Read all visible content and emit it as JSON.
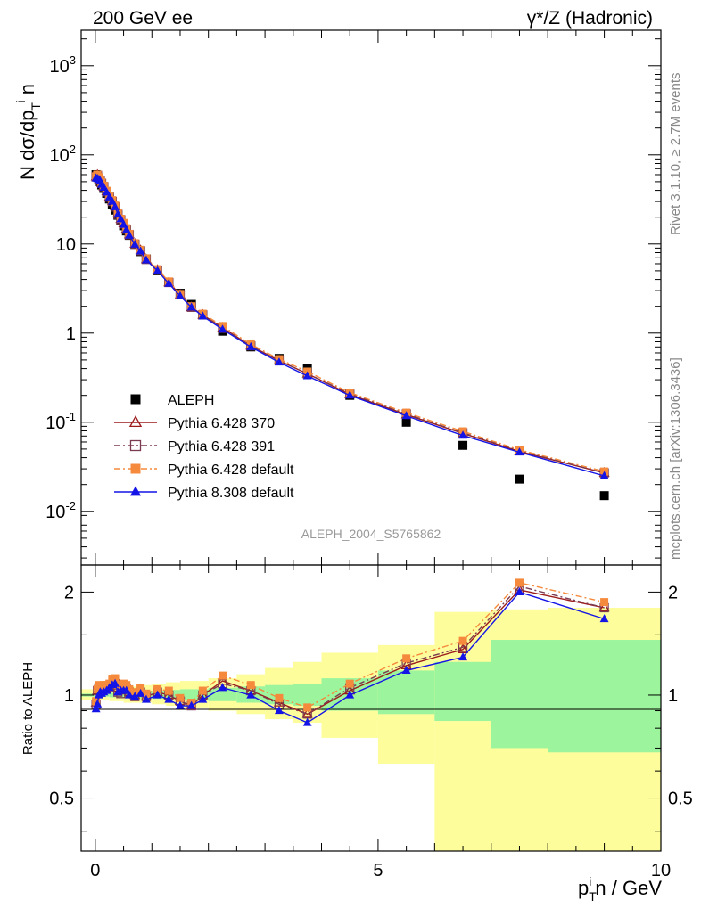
{
  "header": {
    "left": "200 GeV ee",
    "right": "γ*/Z (Hadronic)"
  },
  "side_text": {
    "rivet": "Rivet 3.1.10, ≥ 2.7M events",
    "mcplots": "mcplots.cern.ch [arXiv:1306.3436]"
  },
  "watermark": "ALEPH_2004_S5765862",
  "chart_data": [
    {
      "type": "scatter",
      "panel": "main",
      "yscale": "log",
      "ylabel": "N dσ/dp_T^i n",
      "xlim": [
        -0.25,
        10
      ],
      "ylim": [
        0.0025,
        2500
      ],
      "y_tick_labels": [
        "10^-2",
        "10^-1",
        "1",
        "10",
        "10^2",
        "10^3"
      ],
      "x": [
        0.0125,
        0.0375,
        0.0625,
        0.0875,
        0.1125,
        0.15,
        0.2,
        0.25,
        0.3,
        0.35,
        0.4,
        0.45,
        0.5,
        0.55,
        0.6,
        0.7,
        0.8,
        0.9,
        1.1,
        1.3,
        1.5,
        1.7,
        1.9,
        2.25,
        2.75,
        3.25,
        3.75,
        4.5,
        5.5,
        6.5,
        7.5,
        9.0
      ],
      "series": [
        {
          "name": "ALEPH",
          "marker": "filled-square",
          "color": "#000000",
          "values": [
            60.0,
            57.5,
            52.5,
            50.0,
            46.0,
            42.0,
            37.0,
            32.0,
            28.0,
            24.0,
            21.0,
            18.5,
            16.0,
            14.0,
            12.5,
            10.0,
            8.2,
            6.8,
            5.0,
            3.7,
            2.8,
            2.1,
            1.6,
            1.05,
            0.7,
            0.52,
            0.4,
            0.2,
            0.1,
            0.055,
            0.023,
            0.015
          ]
        },
        {
          "name": "Pythia 6.428 370",
          "marker": "open-triangle",
          "color": "#9b1c1c",
          "line": "solid",
          "values": [
            57.0,
            59.5,
            55.0,
            52.0,
            48.0,
            44.0,
            39.0,
            34.0,
            30.5,
            26.5,
            22.0,
            19.0,
            17.0,
            14.8,
            12.8,
            10.0,
            8.5,
            6.7,
            5.1,
            3.7,
            2.7,
            1.95,
            1.6,
            1.15,
            0.72,
            0.49,
            0.35,
            0.205,
            0.122,
            0.075,
            0.047,
            0.027
          ]
        },
        {
          "name": "Pythia 6.428 391",
          "marker": "open-square",
          "color": "#7a3a50",
          "line": "dash-dot",
          "values": [
            56.5,
            59.0,
            55.0,
            52.0,
            48.0,
            44.0,
            38.5,
            33.5,
            30.0,
            26.0,
            21.5,
            18.7,
            16.8,
            14.6,
            12.7,
            9.9,
            8.4,
            6.7,
            5.1,
            3.7,
            2.7,
            1.95,
            1.6,
            1.13,
            0.72,
            0.49,
            0.35,
            0.21,
            0.124,
            0.076,
            0.048,
            0.027
          ]
        },
        {
          "name": "Pythia 6.428 default",
          "marker": "filled-square",
          "color": "#f58a3c",
          "line": "dash-dot",
          "values": [
            57.5,
            60.0,
            56.0,
            53.0,
            49.0,
            45.0,
            39.5,
            34.5,
            31.0,
            27.0,
            22.5,
            19.2,
            17.2,
            15.0,
            13.0,
            10.2,
            8.6,
            6.9,
            5.2,
            3.8,
            2.75,
            2.0,
            1.65,
            1.2,
            0.75,
            0.51,
            0.37,
            0.215,
            0.128,
            0.079,
            0.049,
            0.028
          ]
        },
        {
          "name": "Pythia 8.308 default",
          "marker": "filled-triangle",
          "color": "#1414e6",
          "line": "solid",
          "values": [
            55.0,
            54.0,
            53.0,
            51.0,
            46.5,
            43.0,
            38.0,
            33.5,
            30.0,
            26.0,
            21.5,
            19.0,
            16.5,
            14.4,
            12.5,
            9.9,
            8.3,
            6.6,
            5.0,
            3.6,
            2.6,
            1.95,
            1.55,
            1.1,
            0.7,
            0.47,
            0.33,
            0.2,
            0.118,
            0.071,
            0.046,
            0.025
          ]
        }
      ]
    },
    {
      "type": "line",
      "panel": "ratio",
      "ylabel": "Ratio to ALEPH",
      "xlabel": "p_T^i n / GeV",
      "yscale": "log",
      "xlim": [
        -0.25,
        10
      ],
      "ylim": [
        0.35,
        2.4
      ],
      "y_tick_labels": [
        "0.5",
        "1",
        "2"
      ],
      "x_tick_labels": [
        "0",
        "5",
        "10"
      ],
      "x": [
        0.0125,
        0.0375,
        0.0625,
        0.0875,
        0.1125,
        0.15,
        0.2,
        0.25,
        0.3,
        0.35,
        0.4,
        0.45,
        0.5,
        0.55,
        0.6,
        0.7,
        0.8,
        0.9,
        1.1,
        1.3,
        1.5,
        1.7,
        1.9,
        2.25,
        2.75,
        3.25,
        3.75,
        4.5,
        5.5,
        6.5,
        7.5,
        9.0
      ],
      "bands": {
        "bin_edges": [
          -0.25,
          0.25,
          0.5,
          0.75,
          1.0,
          1.25,
          1.5,
          2.0,
          2.5,
          3.0,
          3.5,
          4.0,
          5.0,
          6.0,
          7.0,
          8.0,
          10.0
        ],
        "inner": [
          [
            0.99,
            1.01
          ],
          [
            0.985,
            1.015
          ],
          [
            0.98,
            1.02
          ],
          [
            0.98,
            1.03
          ],
          [
            0.975,
            1.03
          ],
          [
            0.975,
            1.035
          ],
          [
            0.97,
            1.04
          ],
          [
            0.96,
            1.05
          ],
          [
            0.95,
            1.06
          ],
          [
            0.94,
            1.07
          ],
          [
            0.93,
            1.08
          ],
          [
            0.9,
            1.12
          ],
          [
            0.88,
            1.18
          ],
          [
            0.84,
            1.25
          ],
          [
            0.7,
            1.45
          ],
          [
            0.68,
            1.45
          ]
        ],
        "outer": [
          [
            0.97,
            1.04
          ],
          [
            0.96,
            1.05
          ],
          [
            0.95,
            1.06
          ],
          [
            0.95,
            1.07
          ],
          [
            0.94,
            1.08
          ],
          [
            0.93,
            1.09
          ],
          [
            0.92,
            1.1
          ],
          [
            0.9,
            1.12
          ],
          [
            0.88,
            1.15
          ],
          [
            0.85,
            1.2
          ],
          [
            0.83,
            1.25
          ],
          [
            0.75,
            1.33
          ],
          [
            0.63,
            1.4
          ],
          [
            0.35,
            1.75
          ],
          [
            0.35,
            1.78
          ],
          [
            0.35,
            1.8
          ]
        ],
        "inner_color": "#9cf59c",
        "outer_color": "#fdfd9c"
      },
      "series": [
        {
          "name": "Pythia 6.428 370",
          "color": "#9b1c1c",
          "marker": "open-triangle",
          "line": "solid",
          "values": [
            0.95,
            1.03,
            1.05,
            1.04,
            1.04,
            1.05,
            1.05,
            1.06,
            1.09,
            1.1,
            1.05,
            1.03,
            1.06,
            1.06,
            1.02,
            1.0,
            1.04,
            0.99,
            1.02,
            1.0,
            0.96,
            0.93,
            1.0,
            1.1,
            1.03,
            0.95,
            0.88,
            1.03,
            1.22,
            1.36,
            2.03,
            1.8
          ]
        },
        {
          "name": "Pythia 6.428 391",
          "color": "#7a3a50",
          "marker": "open-square",
          "line": "dash-dot",
          "values": [
            0.94,
            1.03,
            1.05,
            1.04,
            1.04,
            1.05,
            1.04,
            1.05,
            1.07,
            1.08,
            1.02,
            1.01,
            1.05,
            1.04,
            1.02,
            0.99,
            1.02,
            0.99,
            1.02,
            1.0,
            0.96,
            0.93,
            1.0,
            1.08,
            1.03,
            0.94,
            0.88,
            1.05,
            1.24,
            1.38,
            2.08,
            1.8
          ]
        },
        {
          "name": "Pythia 6.428 default",
          "color": "#f58a3c",
          "marker": "filled-square",
          "line": "dash-dot",
          "values": [
            0.96,
            1.04,
            1.07,
            1.06,
            1.06,
            1.07,
            1.07,
            1.08,
            1.11,
            1.12,
            1.07,
            1.04,
            1.08,
            1.07,
            1.04,
            1.02,
            1.05,
            1.01,
            1.04,
            1.03,
            0.98,
            0.95,
            1.03,
            1.14,
            1.07,
            0.98,
            0.92,
            1.08,
            1.28,
            1.44,
            2.13,
            1.87
          ]
        },
        {
          "name": "Pythia 8.308 default",
          "color": "#1414e6",
          "marker": "filled-triangle",
          "line": "solid",
          "values": [
            0.91,
            0.94,
            1.0,
            1.02,
            1.01,
            1.02,
            1.03,
            1.05,
            1.07,
            1.08,
            1.02,
            1.03,
            1.03,
            1.03,
            1.0,
            0.99,
            1.01,
            0.97,
            1.0,
            0.97,
            0.93,
            0.93,
            0.97,
            1.05,
            1.0,
            0.9,
            0.83,
            1.0,
            1.18,
            1.29,
            2.0,
            1.67
          ]
        }
      ]
    }
  ]
}
